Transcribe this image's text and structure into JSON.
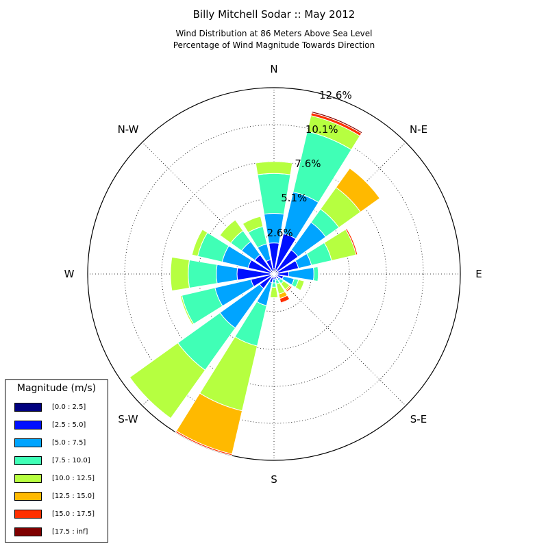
{
  "title": "Billy Mitchell Sodar :: May 2012",
  "subtitle_line1": "Wind Distribution at 86 Meters Above Sea Level",
  "subtitle_line2": "Percentage of Wind Magnitude Towards Direction",
  "legend": {
    "title": "Magnitude (m/s)",
    "items": [
      {
        "label": "[0.0 : 2.5]",
        "color": "#00007f"
      },
      {
        "label": "[2.5 : 5.0]",
        "color": "#0010ff"
      },
      {
        "label": "[5.0 : 7.5]",
        "color": "#00a4ff"
      },
      {
        "label": "[7.5 : 10.0]",
        "color": "#40ffb6"
      },
      {
        "label": "[10.0 : 12.5]",
        "color": "#b6ff40"
      },
      {
        "label": "[12.5 : 15.0]",
        "color": "#ffb900"
      },
      {
        "label": "[15.0 : 17.5]",
        "color": "#ff3000"
      },
      {
        "label": "[17.5 : inf]",
        "color": "#7f0000"
      }
    ]
  },
  "chart_data": {
    "type": "wind_rose",
    "radial_unit": "percent of observations",
    "ring_labels": [
      "2.6%",
      "5.1%",
      "7.6%",
      "10.1%",
      "12.6%"
    ],
    "ring_values": [
      2.55,
      5.1,
      7.6,
      10.1,
      12.6
    ],
    "rmax": 12.6,
    "compass_labels": {
      "N": "N",
      "NE": "N-E",
      "E": "E",
      "SE": "S-E",
      "S": "S",
      "SW": "S-W",
      "W": "W",
      "NW": "N-W"
    },
    "bin_labels": [
      "[0.0 : 2.5]",
      "[2.5 : 5.0]",
      "[5.0 : 7.5]",
      "[7.5 : 10.0]",
      "[10.0 : 12.5]",
      "[12.5 : 15.0]",
      "[15.0 : 17.5]",
      "[17.5 : inf]"
    ],
    "directions_deg": [
      0,
      22.5,
      45,
      67.5,
      90,
      112.5,
      135,
      157.5,
      180,
      202.5,
      225,
      247.5,
      270,
      292.5,
      315,
      337.5
    ],
    "cumulative_percent": [
      [
        0.35,
        2.1,
        4.1,
        6.8,
        7.6,
        7.6,
        7.6,
        7.6
      ],
      [
        0.3,
        2.8,
        5.7,
        9.9,
        11.0,
        11.0,
        11.2,
        11.3
      ],
      [
        0.3,
        2.0,
        4.3,
        5.4,
        7.2,
        8.8,
        8.8,
        8.8
      ],
      [
        0.3,
        1.7,
        2.6,
        4.0,
        5.7,
        5.7,
        5.8,
        5.8
      ],
      [
        0.25,
        1.0,
        2.7,
        3.0,
        3.0,
        3.0,
        3.0,
        3.0
      ],
      [
        0.25,
        0.65,
        1.4,
        1.7,
        2.1,
        2.1,
        2.1,
        2.1
      ],
      [
        0.25,
        0.4,
        0.55,
        0.8,
        1.3,
        1.4,
        1.5,
        1.5
      ],
      [
        0.2,
        0.35,
        0.45,
        0.7,
        1.4,
        1.7,
        2.0,
        2.05
      ],
      [
        0.2,
        0.35,
        0.6,
        0.9,
        1.6,
        1.6,
        1.6,
        1.6
      ],
      [
        0.25,
        0.6,
        2.2,
        5.0,
        9.5,
        12.5,
        12.6,
        12.6
      ],
      [
        0.25,
        1.2,
        4.5,
        8.0,
        12.0,
        12.0,
        12.0,
        12.0
      ],
      [
        0.2,
        1.6,
        4.1,
        6.4,
        6.5,
        6.5,
        6.5,
        6.5
      ],
      [
        0.25,
        2.5,
        3.9,
        5.8,
        7.0,
        7.0,
        7.0,
        7.0
      ],
      [
        0.2,
        1.8,
        3.6,
        5.3,
        5.7,
        5.7,
        5.7,
        5.7
      ],
      [
        0.3,
        1.6,
        2.7,
        3.6,
        4.5,
        4.5,
        4.5,
        4.5
      ],
      [
        0.2,
        1.0,
        2.1,
        3.3,
        4.0,
        4.0,
        4.0,
        4.0
      ]
    ]
  }
}
